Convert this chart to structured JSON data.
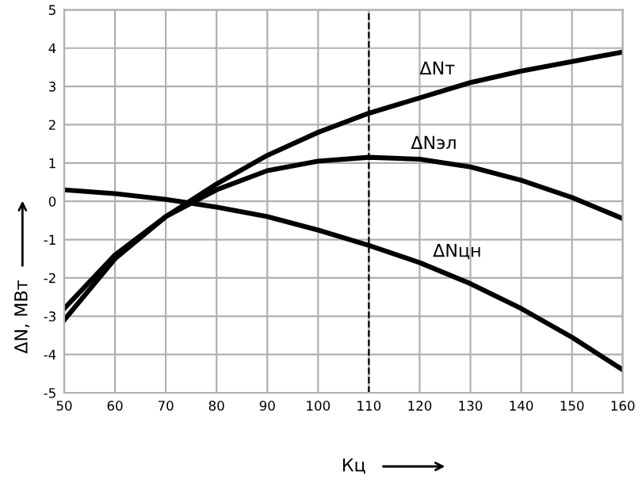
{
  "chart_data": {
    "type": "line",
    "xlabel": "Кц",
    "ylabel": "ΔN, МВт",
    "x": [
      50,
      60,
      70,
      80,
      90,
      100,
      110,
      120,
      130,
      140,
      150,
      160
    ],
    "series": [
      {
        "name": "ΔNт",
        "color": "#000000",
        "values": [
          -3.1,
          -1.5,
          -0.4,
          0.45,
          1.2,
          1.8,
          2.3,
          2.7,
          3.1,
          3.4,
          3.65,
          3.9
        ]
      },
      {
        "name": "ΔNэл",
        "color": "#000000",
        "values": [
          -2.8,
          -1.4,
          -0.4,
          0.3,
          0.8,
          1.05,
          1.15,
          1.1,
          0.9,
          0.55,
          0.1,
          -0.45
        ]
      },
      {
        "name": "ΔNцн",
        "color": "#000000",
        "values": [
          0.3,
          0.2,
          0.05,
          -0.15,
          -0.4,
          -0.75,
          -1.15,
          -1.6,
          -2.15,
          -2.8,
          -3.55,
          -4.4
        ]
      }
    ],
    "xlim": [
      50,
      160
    ],
    "xticks": [
      50,
      60,
      70,
      80,
      90,
      100,
      110,
      120,
      130,
      140,
      150,
      160
    ],
    "ylim": [
      -5,
      5
    ],
    "yticks": [
      -5,
      -4,
      -3,
      -2,
      -1,
      0,
      1,
      2,
      3,
      4,
      5
    ],
    "ref_lines": [
      {
        "axis": "x",
        "value": 110,
        "color": "#000000",
        "line_style": "dashed"
      }
    ],
    "grid": true,
    "legend": false,
    "marker": "none",
    "line_style": "solid"
  }
}
